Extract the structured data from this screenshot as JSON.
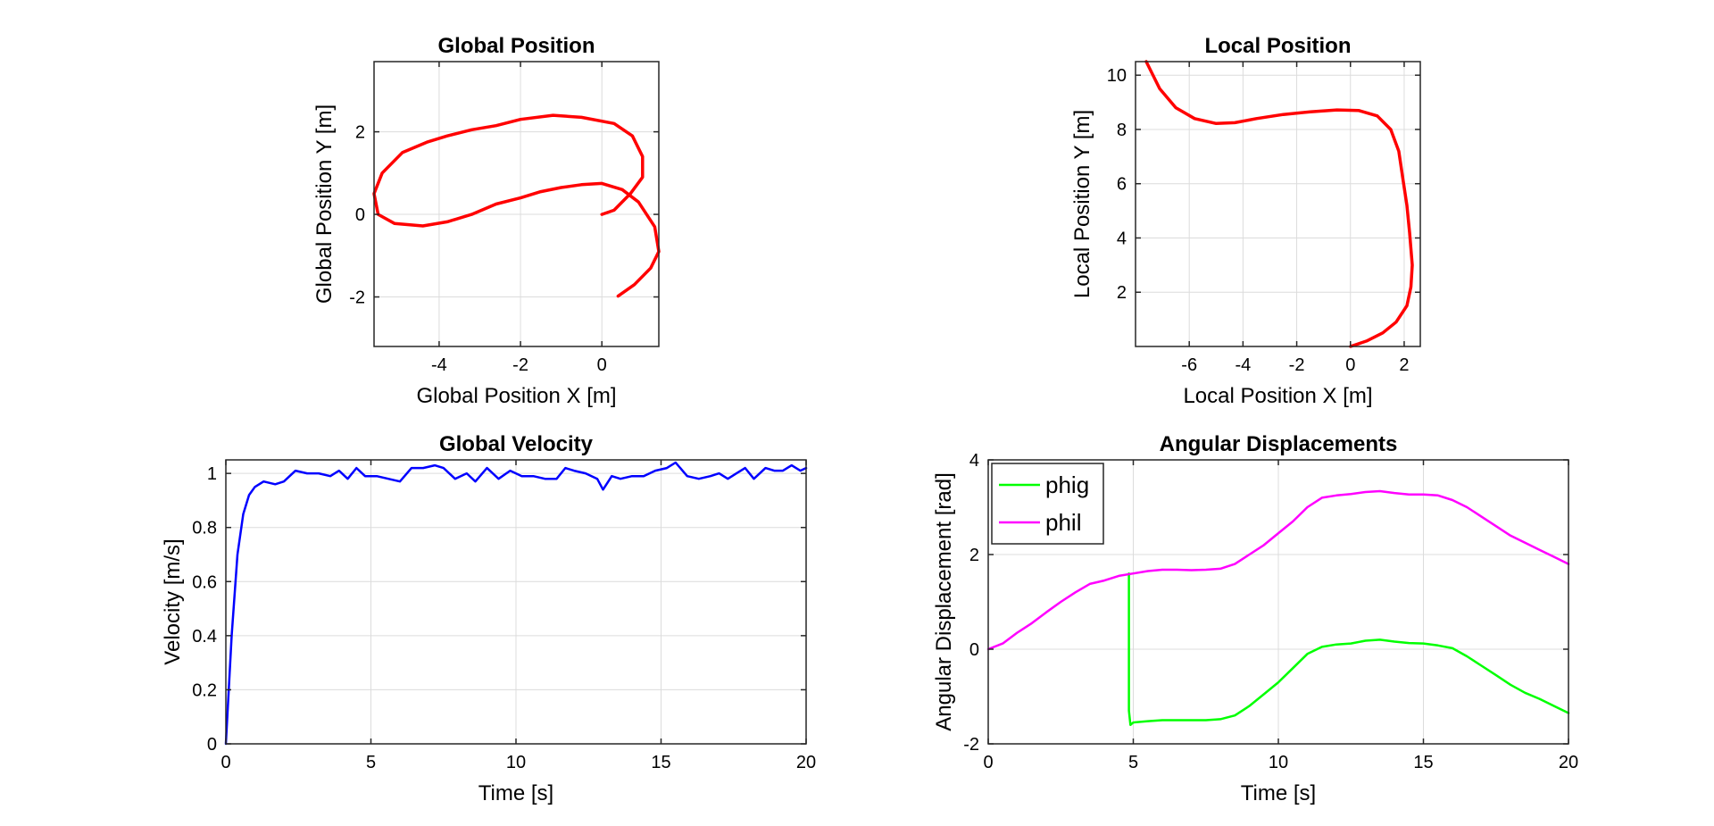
{
  "chart_data": [
    {
      "type": "line",
      "title": "Global Position",
      "xlabel": "Global Position X [m]",
      "ylabel": "Global Position Y [m]",
      "xlim": [
        -5.6,
        1.4
      ],
      "ylim": [
        -3.2,
        3.7
      ],
      "xticks": [
        -4,
        -2,
        0
      ],
      "yticks": [
        -2,
        0,
        2
      ],
      "grid": true,
      "series": [
        {
          "color": "#ff0000",
          "x": [
            0,
            0.3,
            0.7,
            1.0,
            1.0,
            0.75,
            0.3,
            -0.5,
            -1.2,
            -2.0,
            -2.6,
            -3.2,
            -3.8,
            -4.3,
            -4.9,
            -5.4,
            -5.6,
            -5.5,
            -5.1,
            -4.4,
            -3.8,
            -3.2,
            -2.6,
            -2.0,
            -1.5,
            -1.0,
            -0.5,
            0.0,
            0.5,
            0.9,
            1.3,
            1.4,
            1.2,
            0.8,
            0.4
          ],
          "y": [
            0,
            0.1,
            0.5,
            0.9,
            1.4,
            1.9,
            2.2,
            2.35,
            2.4,
            2.3,
            2.15,
            2.05,
            1.9,
            1.75,
            1.5,
            1.0,
            0.5,
            0.0,
            -0.22,
            -0.28,
            -0.18,
            0.0,
            0.25,
            0.4,
            0.55,
            0.65,
            0.72,
            0.75,
            0.6,
            0.3,
            -0.3,
            -0.9,
            -1.3,
            -1.7,
            -1.98
          ]
        }
      ]
    },
    {
      "type": "line",
      "title": "Local Position",
      "xlabel": "Local Position X [m]",
      "ylabel": "Local Position Y [m]",
      "xlim": [
        -8,
        2.6
      ],
      "ylim": [
        0,
        10.5
      ],
      "xticks": [
        -6,
        -4,
        -2,
        0,
        2
      ],
      "yticks": [
        2,
        4,
        6,
        8,
        10
      ],
      "grid": true,
      "series": [
        {
          "color": "#ff0000",
          "x": [
            0,
            0.6,
            1.2,
            1.7,
            2.1,
            2.25,
            2.3,
            2.2,
            2.1,
            1.95,
            1.8,
            1.5,
            1.0,
            0.3,
            -0.5,
            -1.5,
            -2.5,
            -3.5,
            -4.3,
            -5.0,
            -5.8,
            -6.5,
            -7.1,
            -7.6
          ],
          "y": [
            0,
            0.2,
            0.5,
            0.9,
            1.5,
            2.2,
            3.0,
            4.2,
            5.2,
            6.2,
            7.2,
            8.0,
            8.5,
            8.7,
            8.72,
            8.65,
            8.55,
            8.4,
            8.25,
            8.22,
            8.4,
            8.8,
            9.5,
            10.5
          ]
        }
      ]
    },
    {
      "type": "line",
      "title": "Global Velocity",
      "xlabel": "Time [s]",
      "ylabel": "Velocity [m/s]",
      "xlim": [
        0,
        20
      ],
      "ylim": [
        0,
        1.05
      ],
      "xticks": [
        0,
        5,
        10,
        15,
        20
      ],
      "yticks": [
        0,
        0.2,
        0.4,
        0.6,
        0.8,
        1
      ],
      "grid": true,
      "series": [
        {
          "color": "#0000ff",
          "x": [
            0,
            0.2,
            0.4,
            0.6,
            0.8,
            1.0,
            1.3,
            1.7,
            2.0,
            2.4,
            2.8,
            3.2,
            3.6,
            3.9,
            4.2,
            4.5,
            4.8,
            5.2,
            5.6,
            6.0,
            6.4,
            6.8,
            7.2,
            7.5,
            7.9,
            8.3,
            8.6,
            9.0,
            9.4,
            9.8,
            10.2,
            10.6,
            11.0,
            11.4,
            11.7,
            12.0,
            12.4,
            12.8,
            13.0,
            13.3,
            13.6,
            14.0,
            14.4,
            14.8,
            15.2,
            15.5,
            15.9,
            16.3,
            16.7,
            17.0,
            17.3,
            17.6,
            17.9,
            18.2,
            18.6,
            18.9,
            19.2,
            19.5,
            19.8,
            20.0
          ],
          "y": [
            0,
            0.4,
            0.7,
            0.85,
            0.92,
            0.95,
            0.97,
            0.96,
            0.97,
            1.01,
            1.0,
            1.0,
            0.99,
            1.01,
            0.98,
            1.02,
            0.99,
            0.99,
            0.98,
            0.97,
            1.02,
            1.02,
            1.03,
            1.02,
            0.98,
            1.0,
            0.97,
            1.02,
            0.98,
            1.01,
            0.99,
            0.99,
            0.98,
            0.98,
            1.02,
            1.01,
            1.0,
            0.98,
            0.94,
            0.99,
            0.98,
            0.99,
            0.99,
            1.01,
            1.02,
            1.04,
            0.99,
            0.98,
            0.99,
            1.0,
            0.98,
            1.0,
            1.02,
            0.98,
            1.02,
            1.01,
            1.01,
            1.03,
            1.01,
            1.02
          ]
        }
      ]
    },
    {
      "type": "line",
      "title": "Angular Displacements",
      "xlabel": "Time [s]",
      "ylabel": "Angular Displacement [rad]",
      "xlim": [
        0,
        20
      ],
      "ylim": [
        -2,
        4
      ],
      "xticks": [
        0,
        5,
        10,
        15,
        20
      ],
      "yticks": [
        -2,
        0,
        2,
        4
      ],
      "grid": true,
      "legend": "top-left",
      "series": [
        {
          "name": "phig",
          "color": "#00ff00",
          "x": [
            4.85,
            4.85,
            4.9,
            5.0,
            5.5,
            6.0,
            6.5,
            7.0,
            7.5,
            8.0,
            8.5,
            9.0,
            9.5,
            10.0,
            10.5,
            11.0,
            11.5,
            12.0,
            12.5,
            13.0,
            13.5,
            14.0,
            14.5,
            15.0,
            15.5,
            16.0,
            16.5,
            17.0,
            17.5,
            18.0,
            18.5,
            19.0,
            19.5,
            20.0
          ],
          "y": [
            1.6,
            -1.3,
            -1.6,
            -1.55,
            -1.52,
            -1.5,
            -1.5,
            -1.5,
            -1.5,
            -1.48,
            -1.4,
            -1.2,
            -0.95,
            -0.7,
            -0.4,
            -0.1,
            0.05,
            0.1,
            0.12,
            0.18,
            0.2,
            0.16,
            0.13,
            0.12,
            0.08,
            0.02,
            -0.15,
            -0.35,
            -0.55,
            -0.75,
            -0.92,
            -1.05,
            -1.2,
            -1.35
          ]
        },
        {
          "name": "phil",
          "color": "#ff00ff",
          "x": [
            0,
            0.5,
            1.0,
            1.5,
            2.0,
            2.5,
            3.0,
            3.5,
            4.0,
            4.5,
            5.0,
            5.5,
            6.0,
            6.5,
            7.0,
            7.5,
            8.0,
            8.5,
            9.0,
            9.5,
            10.0,
            10.5,
            11.0,
            11.5,
            12.0,
            12.5,
            13.0,
            13.5,
            14.0,
            14.5,
            15.0,
            15.5,
            16.0,
            16.5,
            17.0,
            17.5,
            18.0,
            18.5,
            19.0,
            19.5,
            20.0
          ],
          "y": [
            0,
            0.12,
            0.35,
            0.55,
            0.78,
            1.0,
            1.2,
            1.38,
            1.45,
            1.55,
            1.6,
            1.65,
            1.68,
            1.68,
            1.67,
            1.68,
            1.7,
            1.8,
            2.0,
            2.2,
            2.45,
            2.7,
            3.0,
            3.2,
            3.25,
            3.28,
            3.32,
            3.34,
            3.3,
            3.27,
            3.27,
            3.25,
            3.15,
            3.0,
            2.8,
            2.6,
            2.4,
            2.25,
            2.1,
            1.95,
            1.8
          ]
        }
      ]
    }
  ]
}
